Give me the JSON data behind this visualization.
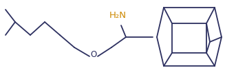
{
  "background_color": "#ffffff",
  "line_color": "#2d3060",
  "nh2_color": "#cc8800",
  "line_width": 1.3,
  "figsize": [
    3.27,
    1.16
  ],
  "dpi": 100,
  "font_size": 8.5,
  "o_color": "#2d3060"
}
